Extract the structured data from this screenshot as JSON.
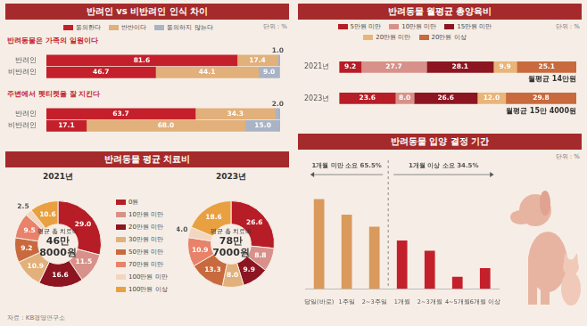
{
  "source": "자료 : KB경영연구소",
  "chart_data": [
    {
      "type": "bar",
      "orientation": "horizontal",
      "stacked": true,
      "data_labels": true,
      "tick_labels": "y",
      "title": "반려인 vs 비반려인 인식 차이",
      "unit": "단위 : %",
      "legend": "top",
      "xlim": [
        0,
        100
      ],
      "series": [
        {
          "name": "동의한다",
          "color": "#c4202b"
        },
        {
          "name": "반반이다",
          "color": "#e2b07a"
        },
        {
          "name": "동의하지 않는다",
          "color": "#a9b3c6"
        }
      ],
      "groups": [
        {
          "title": "반려동물은 가족의 일원이다",
          "categories": [
            "반려인",
            "비반려인"
          ],
          "values": [
            [
              81.6,
              46.7
            ],
            [
              17.4,
              44.1
            ],
            [
              1.0,
              9.0
            ]
          ],
          "value_labels": [
            [
              "81.6",
              "46.7"
            ],
            [
              "17.4",
              "44.1"
            ],
            [
              "1.0",
              "9.0"
            ]
          ]
        },
        {
          "title": "주변에서 펫티켓을 잘 지킨다",
          "categories": [
            "반려인",
            "비반려인"
          ],
          "values": [
            [
              63.7,
              17.1
            ],
            [
              34.3,
              68.0
            ],
            [
              2.0,
              15.0
            ]
          ],
          "value_labels": [
            [
              "63.7",
              "17.1"
            ],
            [
              "34.3",
              "68.0"
            ],
            [
              "2.0",
              "15.0"
            ]
          ]
        }
      ]
    },
    {
      "type": "bar",
      "orientation": "horizontal",
      "stacked": true,
      "data_labels": true,
      "tick_labels": "y",
      "title": "반려동물 월평균 총양육비",
      "unit": "단위 : %",
      "legend": "top",
      "xlim": [
        0,
        100
      ],
      "categories": [
        "2021년",
        "2023년"
      ],
      "series": [
        {
          "name": "5만원 미만",
          "color": "#b71d26",
          "values": [
            9.2,
            23.6
          ],
          "value_labels": [
            "9.2",
            "23.6"
          ]
        },
        {
          "name": "10만원 미만",
          "color": "#d8918a",
          "values": [
            27.7,
            8.0
          ],
          "value_labels": [
            "27.7",
            "8.0"
          ]
        },
        {
          "name": "15만원 미만",
          "color": "#8c1521",
          "values": [
            28.1,
            26.6
          ],
          "value_labels": [
            "28.1",
            "26.6"
          ]
        },
        {
          "name": "20만원 미만",
          "color": "#e8b57a",
          "values": [
            9.9,
            12.0
          ],
          "value_labels": [
            "9.9",
            "12.0"
          ]
        },
        {
          "name": "20만원 이상",
          "color": "#c86a3e",
          "values": [
            25.1,
            29.8
          ],
          "value_labels": [
            "25.1",
            "29.8"
          ]
        }
      ],
      "annotations": [
        "월평균 14만원",
        "월평균 15만 4000원"
      ]
    },
    {
      "type": "doughnut",
      "data_labels": true,
      "title": "반려동물 평균 치료비",
      "legend": "center",
      "categories": [
        "0원",
        "10만원 미만",
        "20만원 미만",
        "30만원 미만",
        "50만원 미만",
        "70만원 미만",
        "100만원 미만",
        "100만원 이상"
      ],
      "colors": [
        "#b71d26",
        "#d8918a",
        "#8c1521",
        "#e2b07a",
        "#c86a3e",
        "#e8826a",
        "#f2d6bf",
        "#e9a040"
      ],
      "series": [
        {
          "name": "2021년",
          "values": [
            29.0,
            11.5,
            16.6,
            10.9,
            9.2,
            9.5,
            2.5,
            10.6
          ],
          "value_labels": [
            "29.0",
            "11.5",
            "16.6",
            "10.9",
            "9.2",
            "9.5",
            "2.5",
            "10.6"
          ],
          "center_text": [
            "평균 총 치료비",
            "46만",
            "8000원"
          ]
        },
        {
          "name": "2023년",
          "values": [
            26.6,
            8.8,
            9.9,
            8.0,
            13.3,
            10.9,
            4.0,
            18.6
          ],
          "value_labels": [
            "26.6",
            "8.8",
            "9.9",
            "8.0",
            "13.3",
            "10.9",
            "4.0",
            "18.6"
          ],
          "center_text": [
            "평균 총 치료비",
            "78만",
            "7000원"
          ]
        }
      ]
    },
    {
      "type": "bar",
      "title": "반려동물 입양 결정 기간",
      "unit": "단위 : %",
      "tick_labels": "x",
      "data_labels": false,
      "categories": [
        "당일(바로)",
        "1주일",
        "2~3주일",
        "1개월",
        "2~3개월",
        "4~5개월",
        "6개월 이상"
      ],
      "values": [
        26.0,
        21.5,
        18.0,
        14.0,
        11.0,
        3.5,
        6.0
      ],
      "colors": [
        "#d99a5c",
        "#d99a5c",
        "#d99a5c",
        "#c4202b",
        "#c4202b",
        "#c4202b",
        "#c4202b"
      ],
      "annotations": [
        "1개월 미만 소요 65.5%",
        "1개월 이상 소요 34.5%"
      ]
    }
  ]
}
